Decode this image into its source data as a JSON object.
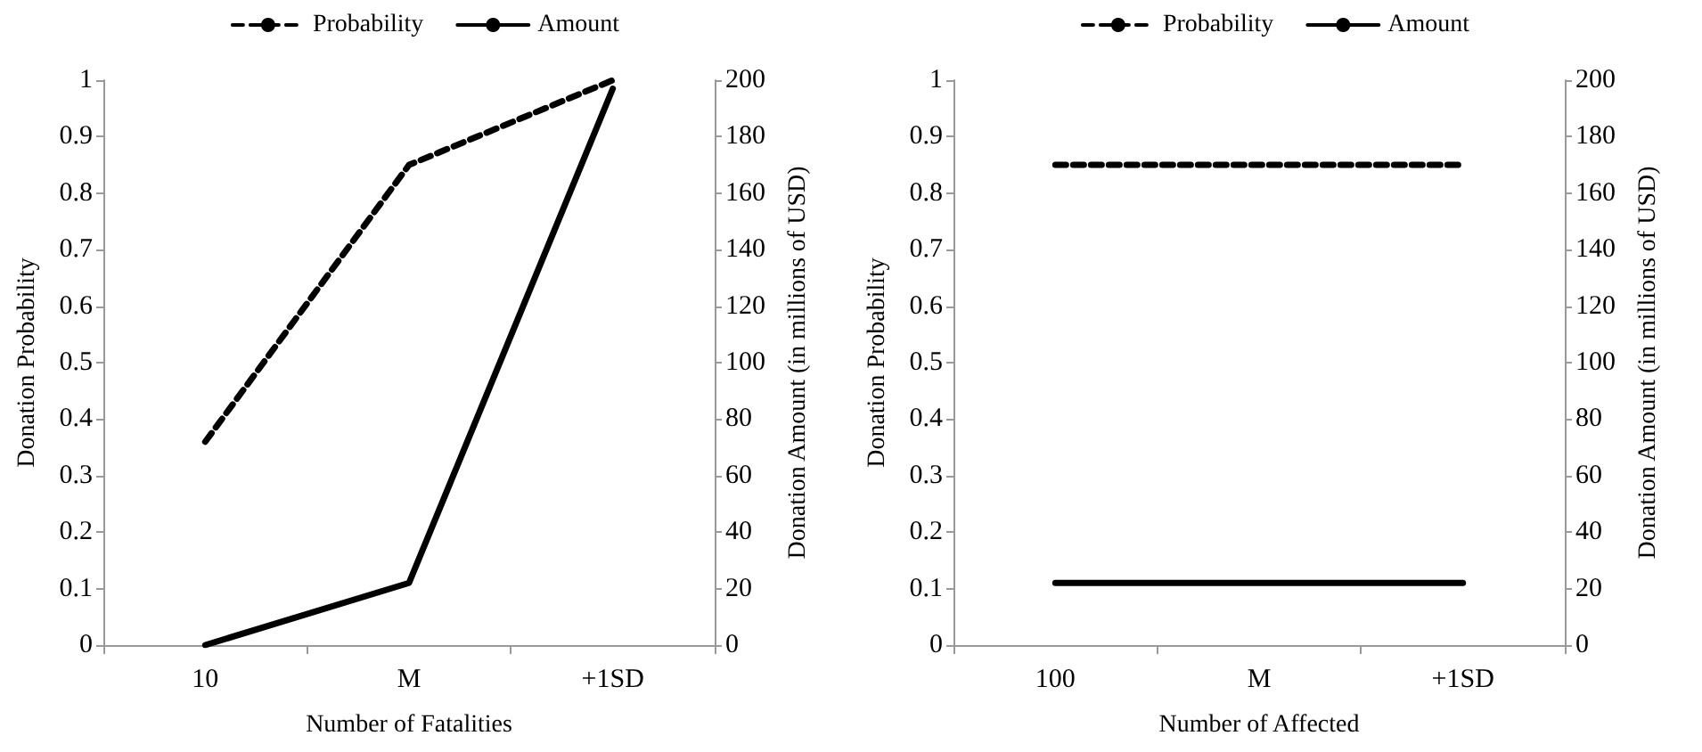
{
  "chart_data": [
    {
      "type": "line",
      "categories": [
        "10",
        "M",
        "+1SD"
      ],
      "xlabel": "Number of Fatalities",
      "ylabel": "Donation Probability",
      "y2label": "Donation Amount (in millions of USD)",
      "series": [
        {
          "name": "Probability",
          "color": "#000000",
          "line_style": "dashed",
          "values": [
            0.36,
            0.85,
            1.0
          ]
        },
        {
          "name": "Amount",
          "color": "#000000",
          "line_style": "solid",
          "axis": "y2",
          "values": [
            0,
            22,
            197
          ]
        }
      ],
      "ylim": [
        0,
        1
      ],
      "yticks": [
        0,
        0.1,
        0.2,
        0.3,
        0.4,
        0.5,
        0.6,
        0.7,
        0.8,
        0.9,
        1
      ],
      "y2lim": [
        0,
        200
      ],
      "y2ticks": [
        0,
        20,
        40,
        60,
        80,
        100,
        120,
        140,
        160,
        180,
        200
      ],
      "legend": "top",
      "grid": false
    },
    {
      "type": "line",
      "categories": [
        "100",
        "M",
        "+1SD"
      ],
      "xlabel": "Number of Affected",
      "ylabel": "Donation Probability",
      "y2label": "Donation Amount (in millions of USD)",
      "series": [
        {
          "name": "Probability",
          "color": "#000000",
          "line_style": "dashed",
          "values": [
            0.85,
            0.85,
            0.85
          ]
        },
        {
          "name": "Amount",
          "color": "#000000",
          "line_style": "solid",
          "axis": "y2",
          "values": [
            22,
            22,
            22
          ]
        }
      ],
      "ylim": [
        0,
        1
      ],
      "yticks": [
        0,
        0.1,
        0.2,
        0.3,
        0.4,
        0.5,
        0.6,
        0.7,
        0.8,
        0.9,
        1
      ],
      "y2lim": [
        0,
        200
      ],
      "y2ticks": [
        0,
        20,
        40,
        60,
        80,
        100,
        120,
        140,
        160,
        180,
        200
      ],
      "legend": "top",
      "grid": false
    }
  ]
}
